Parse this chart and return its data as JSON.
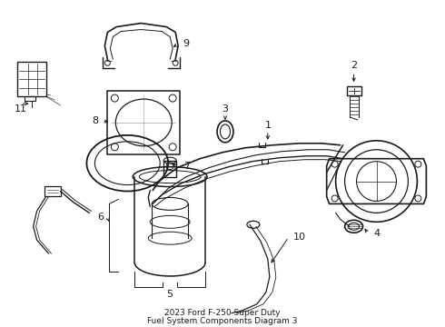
{
  "title": "2023 Ford F-250 Super Duty",
  "subtitle": "Fuel System Components Diagram 3",
  "bg_color": "#ffffff",
  "line_color": "#1a1a1a",
  "fig_width": 4.9,
  "fig_height": 3.6,
  "dpi": 100
}
